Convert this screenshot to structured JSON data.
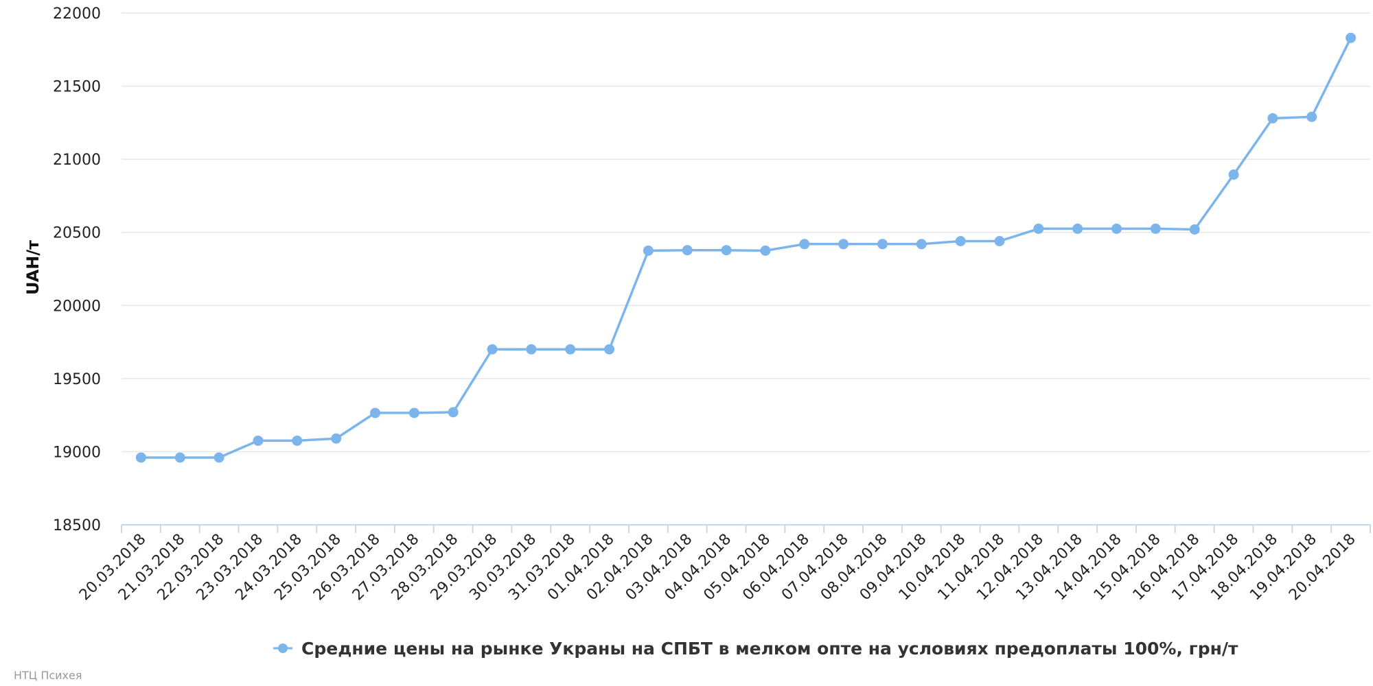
{
  "chart_data": {
    "type": "line",
    "ylabel": "UAH/т",
    "ylim": [
      18500,
      22000
    ],
    "yticks": [
      "22000",
      "21500",
      "21000",
      "20500",
      "20000",
      "19500",
      "19000",
      "18500"
    ],
    "grid": true,
    "legend_position": "bottom-center",
    "categories": [
      "20.03.2018",
      "21.03.2018",
      "22.03.2018",
      "23.03.2018",
      "24.03.2018",
      "25.03.2018",
      "26.03.2018",
      "27.03.2018",
      "28.03.2018",
      "29.03.2018",
      "30.03.2018",
      "31.03.2018",
      "01.04.2018",
      "02.04.2018",
      "03.04.2018",
      "04.04.2018",
      "05.04.2018",
      "06.04.2018",
      "07.04.2018",
      "08.04.2018",
      "09.04.2018",
      "10.04.2018",
      "11.04.2018",
      "12.04.2018",
      "13.04.2018",
      "14.04.2018",
      "15.04.2018",
      "16.04.2018",
      "17.04.2018",
      "18.04.2018",
      "19.04.2018",
      "20.04.2018"
    ],
    "series": [
      {
        "name": "Средние цены на рынке Украны на СПБТ в мелком опте на условиях предоплаты 100%, грн/т",
        "color": "#7cb5ec",
        "values": [
          18960,
          18960,
          18960,
          19075,
          19075,
          19090,
          19265,
          19265,
          19270,
          19700,
          19700,
          19700,
          19700,
          20375,
          20378,
          20378,
          20375,
          20420,
          20420,
          20420,
          20420,
          20440,
          20440,
          20525,
          20525,
          20525,
          20525,
          20520,
          20895,
          21280,
          21290,
          21830
        ]
      }
    ]
  },
  "credit": "НТЦ Психея"
}
